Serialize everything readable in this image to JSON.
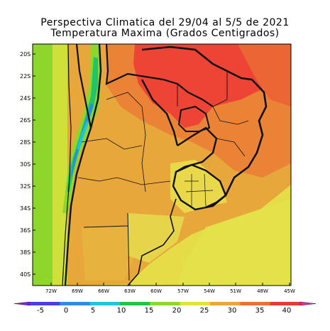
{
  "title": {
    "line1": "Perspectiva Climatica del 29/04 al 5/5 de 2021",
    "line2": "Temperatura Maxima (Grados Centigrados)"
  },
  "map": {
    "latitude_labels": [
      "20S",
      "22S",
      "24S",
      "26S",
      "28S",
      "30S",
      "32S",
      "34S",
      "36S",
      "38S",
      "40S"
    ],
    "longitude_labels": [
      "72W",
      "69W",
      "66W",
      "63W",
      "60W",
      "57W",
      "54W",
      "51W",
      "48W",
      "45W"
    ],
    "regions": [
      {
        "name": "andes-cold-band",
        "value": 10,
        "color": "#22c0a0"
      },
      {
        "name": "chile-coast",
        "value": 22,
        "color": "#d8e03a"
      },
      {
        "name": "argentina-interior",
        "value": 28,
        "color": "#e7a73a"
      },
      {
        "name": "north-hot-zone",
        "value": 37,
        "color": "#ee4436"
      },
      {
        "name": "atlantic-ocean",
        "value": 24,
        "color": "#e7e24a"
      }
    ]
  },
  "colorbar": {
    "labels": [
      "-5",
      "0",
      "5",
      "10",
      "15",
      "20",
      "25",
      "30",
      "35",
      "40"
    ],
    "colors": [
      "#8a1ae0",
      "#4b3fe3",
      "#2f8ce6",
      "#22c4d6",
      "#20c44a",
      "#8ddb28",
      "#e3e13a",
      "#e8a83c",
      "#ea6f33",
      "#e33b39",
      "#e826b8"
    ]
  }
}
